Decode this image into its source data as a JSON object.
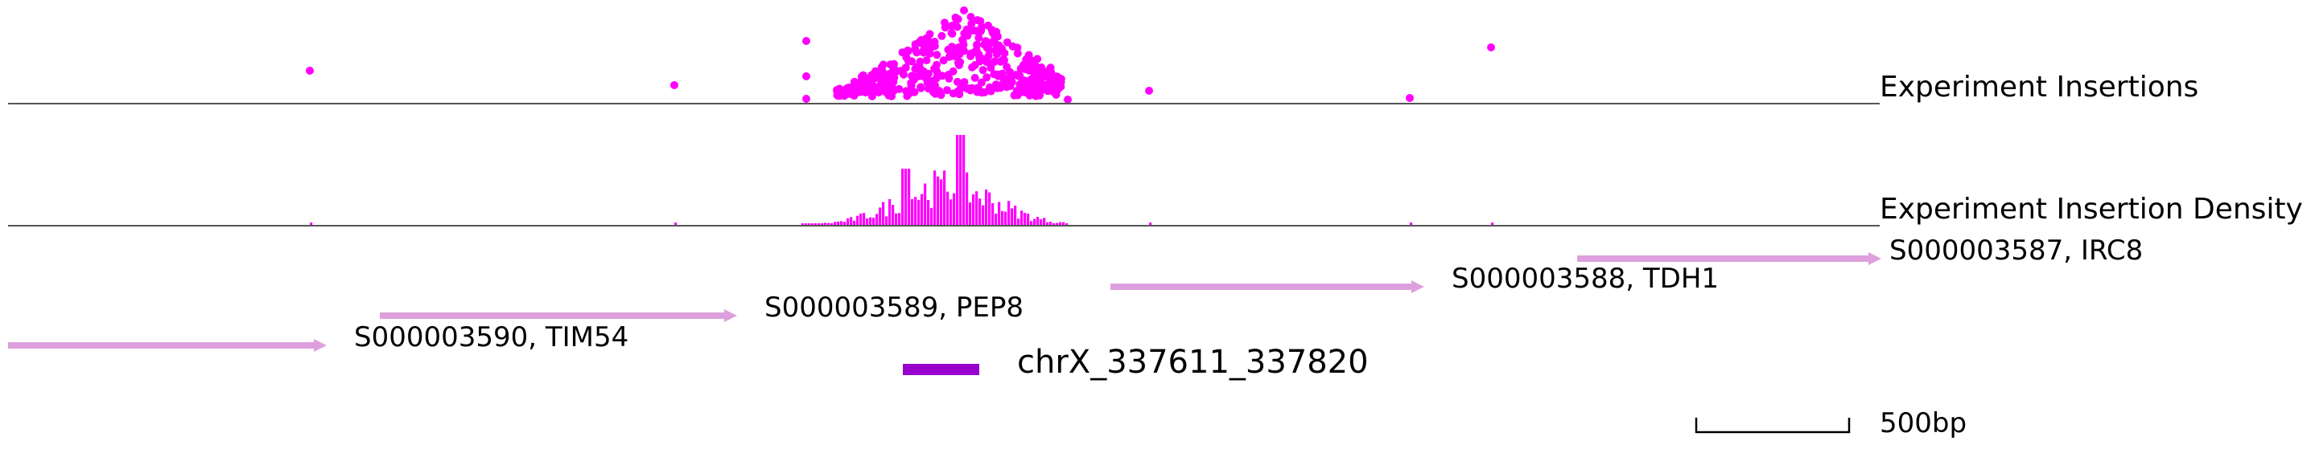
{
  "colors": {
    "insertion": "#ff00ff",
    "gene": "#dda0dd",
    "region": "#9900cc",
    "axis": "#555555"
  },
  "tracks": {
    "insertions": {
      "label": "Experiment Insertions"
    },
    "density": {
      "label": "Experiment Insertion Density"
    }
  },
  "chart_data": {
    "type": "scatter",
    "region": {
      "label": "chrX_337611_337820"
    },
    "scale_bar": {
      "label": "500bp"
    },
    "genes": [
      {
        "id": "S000003590",
        "name": "TIM54",
        "label": "S000003590, TIM54",
        "strand": "+"
      },
      {
        "id": "S000003589",
        "name": "PEP8",
        "label": "S000003589, PEP8",
        "strand": "+"
      },
      {
        "id": "S000003588",
        "name": "TDH1",
        "label": "S000003588, TDH1",
        "strand": "+"
      },
      {
        "id": "S000003587",
        "name": "IRC8",
        "label": "S000003587, IRC8",
        "strand": "+"
      }
    ]
  }
}
